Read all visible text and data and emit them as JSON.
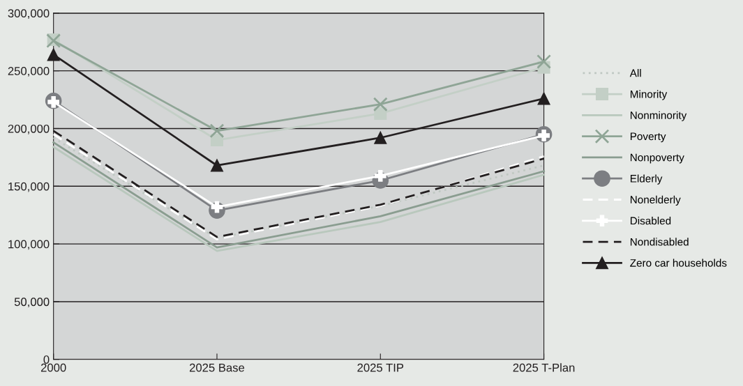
{
  "chart_data": {
    "type": "line",
    "categories": [
      "2000",
      "2025 Base",
      "2025 TIP",
      "2025 T-Plan"
    ],
    "series": [
      {
        "name": "All",
        "color": "#bfc8c2",
        "line_style": "dotted",
        "marker": "none",
        "values": [
          192000,
          105000,
          133000,
          168000
        ]
      },
      {
        "name": "Minority",
        "color": "#c3cfc6",
        "line_style": "solid",
        "marker": "square",
        "values": [
          277000,
          190000,
          213000,
          253000
        ]
      },
      {
        "name": "Nonminority",
        "color": "#b9c8bd",
        "line_style": "solid",
        "marker": "none",
        "values": [
          184000,
          94000,
          119000,
          160000
        ]
      },
      {
        "name": "Poverty",
        "color": "#8fa596",
        "line_style": "solid",
        "marker": "cross",
        "values": [
          276000,
          198000,
          221000,
          258000
        ]
      },
      {
        "name": "Nonpoverty",
        "color": "#8a9d90",
        "line_style": "solid",
        "marker": "none",
        "values": [
          188000,
          97000,
          124000,
          163000
        ]
      },
      {
        "name": "Elderly",
        "color": "#7c7e82",
        "line_style": "solid",
        "marker": "circle",
        "values": [
          224000,
          129000,
          155000,
          195000
        ]
      },
      {
        "name": "Nonelderly",
        "color": "#ffffff",
        "line_style": "dashed",
        "marker": "none",
        "values": [
          195000,
          104000,
          133000,
          176000
        ]
      },
      {
        "name": "Disabled",
        "color": "#ffffff",
        "line_style": "solid",
        "marker": "plus",
        "values": [
          223000,
          132000,
          159000,
          194000
        ]
      },
      {
        "name": "Nondisabled",
        "color": "#231f20",
        "line_style": "dashed",
        "marker": "none",
        "values": [
          198000,
          106000,
          134000,
          174000
        ]
      },
      {
        "name": "Zero car households",
        "color": "#231f20",
        "line_style": "solid",
        "marker": "triangle",
        "values": [
          264000,
          168000,
          192000,
          226000
        ]
      }
    ],
    "ylim": [
      0,
      300000
    ],
    "yticks": [
      0,
      {
        "value": 50000,
        "label": "50,000"
      },
      {
        "value": 100000,
        "label": "100,000"
      },
      {
        "value": 150000,
        "label": "150,000"
      },
      {
        "value": 200000,
        "label": "200,000"
      },
      {
        "value": 250000,
        "label": "250,000"
      },
      {
        "value": 300000,
        "label": "300,000"
      }
    ],
    "grid": "y",
    "legend": "right"
  }
}
